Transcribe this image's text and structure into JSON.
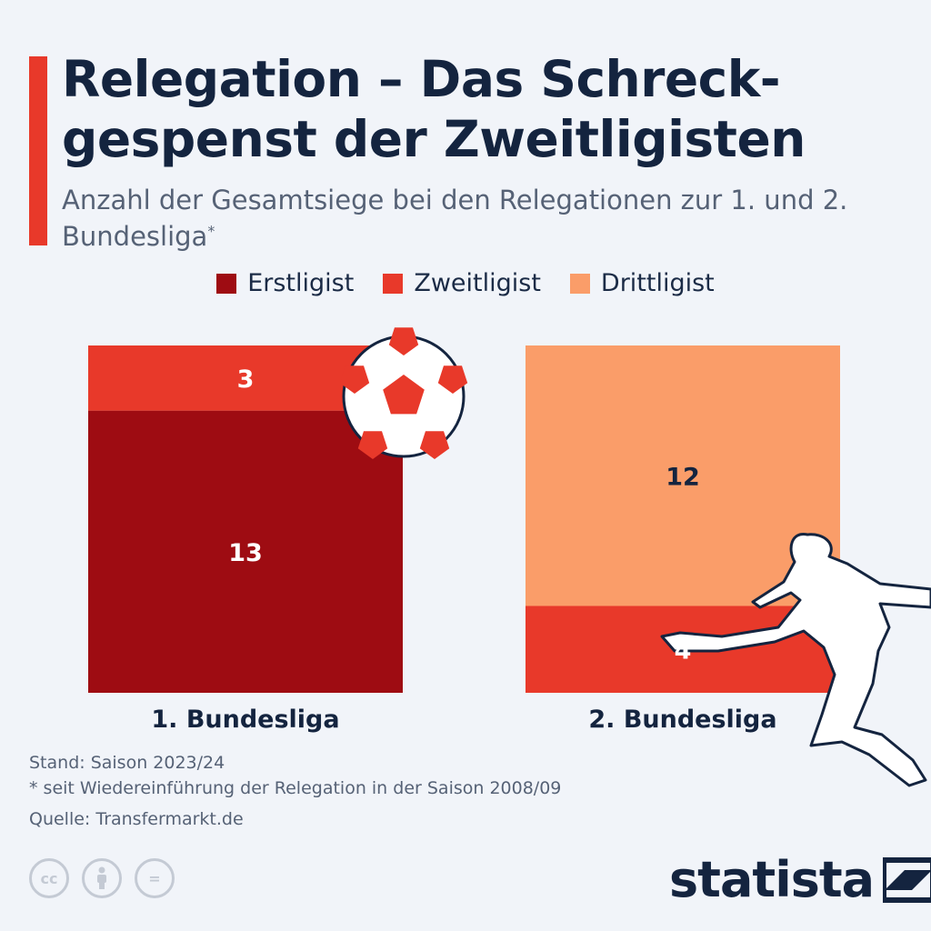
{
  "header": {
    "title": "Relegation – Das Schreck-gespenst der Zweitligisten",
    "subtitle": "Anzahl der Gesamtsiege bei den Relegationen zur 1. und 2. Bundesliga",
    "subtitle_mark": "*"
  },
  "colors": {
    "accent": "#e8392a",
    "erstligist": "#9e0c12",
    "zweitligist": "#e8392a",
    "drittligist": "#fa9d69",
    "dark_text": "#14243f"
  },
  "chart_data": {
    "type": "bar",
    "stacked": true,
    "categories": [
      "1. Bundesliga",
      "2. Bundesliga"
    ],
    "series": [
      {
        "name": "Erstligist",
        "color": "#9e0c12",
        "values": [
          13,
          0
        ]
      },
      {
        "name": "Zweitligist",
        "color": "#e8392a",
        "values": [
          3,
          4
        ]
      },
      {
        "name": "Drittligist",
        "color": "#fa9d69",
        "values": [
          0,
          12
        ]
      }
    ],
    "legend_position": "top-center",
    "grid": false,
    "ylim": [
      0,
      16
    ]
  },
  "footer": {
    "note_stand": "Stand: Saison 2023/24",
    "note_footnote": "* seit Wiedereinführung der Relegation in der Saison 2008/09",
    "source": "Quelle: Transfermarkt.de",
    "license_icons": [
      "cc-icon",
      "attribution-icon",
      "no-derivatives-icon"
    ],
    "license_cc": "cc",
    "license_nd": "=",
    "brand": "statista"
  }
}
